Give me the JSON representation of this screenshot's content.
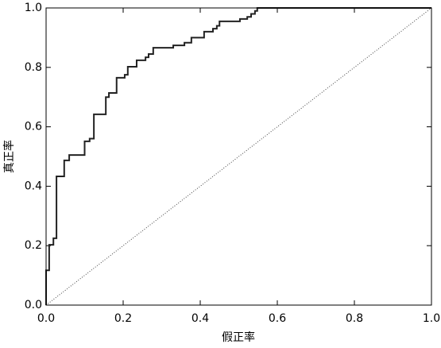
{
  "chart_data": {
    "type": "line",
    "xlabel": "假正率",
    "ylabel": "真正率",
    "xlim": [
      0,
      1
    ],
    "ylim": [
      0,
      1
    ],
    "xticks": [
      {
        "value": 0,
        "label": "0.0"
      },
      0.2,
      0.4,
      0.6,
      0.8,
      {
        "value": 1,
        "label": "1.0"
      }
    ],
    "yticks": [
      {
        "value": 0,
        "label": "0.0"
      },
      0.2,
      0.4,
      0.6,
      0.8,
      {
        "value": 1,
        "label": "1.0"
      }
    ],
    "series": [
      {
        "color": "#222222",
        "linestyle": "solid",
        "x": [
          0,
          0,
          0.008,
          0.008,
          0.019,
          0.019,
          0.027,
          0.027,
          0.047,
          0.047,
          0.06,
          0.06,
          0.1,
          0.1,
          0.113,
          0.113,
          0.124,
          0.124,
          0.155,
          0.155,
          0.163,
          0.163,
          0.183,
          0.183,
          0.204,
          0.204,
          0.212,
          0.212,
          0.235,
          0.235,
          0.258,
          0.258,
          0.266,
          0.266,
          0.278,
          0.278,
          0.33,
          0.33,
          0.359,
          0.359,
          0.377,
          0.377,
          0.41,
          0.41,
          0.433,
          0.433,
          0.443,
          0.443,
          0.45,
          0.45,
          0.503,
          0.503,
          0.522,
          0.522,
          0.532,
          0.532,
          0.542,
          0.542,
          0.548,
          0.548,
          1
        ],
        "values": [
          0,
          0.117,
          0.117,
          0.203,
          0.203,
          0.225,
          0.225,
          0.433,
          0.433,
          0.487,
          0.487,
          0.505,
          0.505,
          0.551,
          0.551,
          0.56,
          0.56,
          0.642,
          0.642,
          0.7,
          0.7,
          0.714,
          0.714,
          0.765,
          0.765,
          0.775,
          0.775,
          0.802,
          0.802,
          0.824,
          0.824,
          0.834,
          0.834,
          0.845,
          0.845,
          0.866,
          0.866,
          0.874,
          0.874,
          0.883,
          0.883,
          0.9,
          0.9,
          0.92,
          0.92,
          0.93,
          0.93,
          0.94,
          0.94,
          0.955,
          0.955,
          0.963,
          0.963,
          0.97,
          0.97,
          0.98,
          0.98,
          0.99,
          0.99,
          1,
          1
        ]
      },
      {
        "color": "#444444",
        "linestyle": "dotted",
        "x": [
          0,
          1
        ],
        "values": [
          0,
          1
        ]
      }
    ]
  }
}
